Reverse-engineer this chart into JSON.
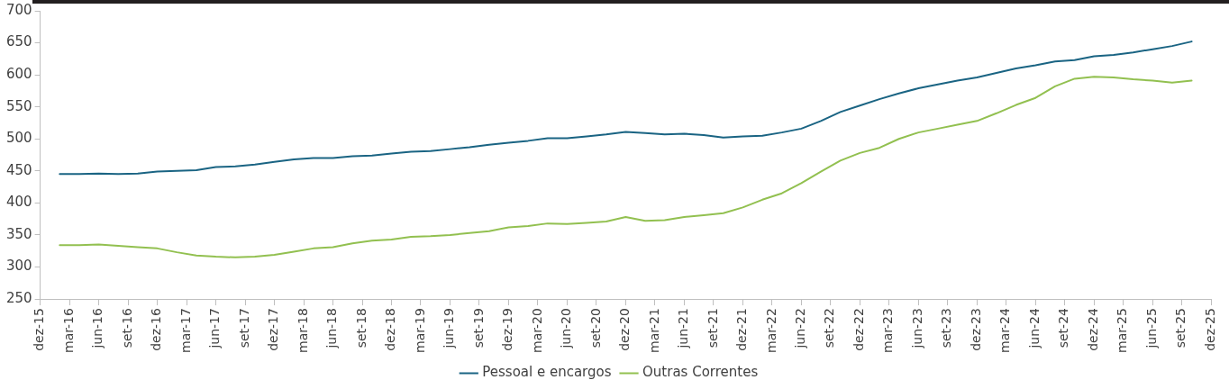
{
  "chart_data": {
    "type": "line",
    "legend": "bottom",
    "grid": false,
    "marker": "none",
    "line_style": "solid",
    "x": [
      "2016-02",
      "2016-04",
      "2016-06",
      "2016-08",
      "2016-10",
      "2016-12",
      "2017-02",
      "2017-04",
      "2017-06",
      "2017-08",
      "2017-10",
      "2017-12",
      "2018-02",
      "2018-04",
      "2018-06",
      "2018-08",
      "2018-10",
      "2018-12",
      "2019-02",
      "2019-04",
      "2019-06",
      "2019-08",
      "2019-10",
      "2019-12",
      "2020-02",
      "2020-04",
      "2020-06",
      "2020-08",
      "2020-10",
      "2020-12",
      "2021-02",
      "2021-04",
      "2021-06",
      "2021-08",
      "2021-10",
      "2021-12",
      "2022-02",
      "2022-04",
      "2022-06",
      "2022-08",
      "2022-10",
      "2022-12",
      "2023-02",
      "2023-04",
      "2023-06",
      "2023-08",
      "2023-10",
      "2023-12",
      "2024-02",
      "2024-04",
      "2024-06",
      "2024-08",
      "2024-10",
      "2024-12",
      "2025-02",
      "2025-04",
      "2025-06",
      "2025-08",
      "2025-10"
    ],
    "series": [
      {
        "name": "Pessoal e encargos",
        "color": "#1a6483",
        "values": [
          445,
          445,
          446,
          445,
          446,
          449,
          450,
          451,
          456,
          457,
          460,
          464,
          468,
          470,
          470,
          473,
          474,
          477,
          480,
          481,
          484,
          487,
          491,
          494,
          497,
          501,
          501,
          504,
          507,
          511,
          509,
          507,
          508,
          506,
          502,
          504,
          505,
          510,
          516,
          528,
          542,
          552,
          562,
          571,
          579,
          585,
          591,
          596,
          603,
          610,
          615,
          621,
          623,
          629,
          631,
          635,
          640,
          645,
          652
        ]
      },
      {
        "name": "Outras Correntes",
        "color": "#92c050",
        "values": [
          334,
          334,
          335,
          333,
          331,
          329,
          323,
          318,
          316,
          315,
          316,
          319,
          324,
          329,
          331,
          337,
          341,
          343,
          347,
          348,
          350,
          353,
          356,
          362,
          364,
          368,
          367,
          369,
          371,
          378,
          372,
          373,
          378,
          381,
          384,
          393,
          405,
          415,
          431,
          449,
          466,
          478,
          486,
          500,
          510,
          516,
          522,
          528,
          540,
          553,
          564,
          582,
          594,
          597,
          596,
          593,
          591,
          588,
          591
        ]
      }
    ],
    "ylim": [
      250,
      700
    ],
    "yticks": [
      250,
      300,
      350,
      400,
      450,
      500,
      550,
      600,
      650,
      700
    ],
    "xlim": [
      "2015-12",
      "2025-12"
    ],
    "xticks": [
      {
        "value": "2015-12",
        "label": "dez-15"
      },
      {
        "value": "2016-03",
        "label": "mar-16"
      },
      {
        "value": "2016-06",
        "label": "jun-16"
      },
      {
        "value": "2016-09",
        "label": "set-16"
      },
      {
        "value": "2016-12",
        "label": "dez-16"
      },
      {
        "value": "2017-03",
        "label": "mar-17"
      },
      {
        "value": "2017-06",
        "label": "jun-17"
      },
      {
        "value": "2017-09",
        "label": "set-17"
      },
      {
        "value": "2017-12",
        "label": "dez-17"
      },
      {
        "value": "2018-03",
        "label": "mar-18"
      },
      {
        "value": "2018-06",
        "label": "jun-18"
      },
      {
        "value": "2018-09",
        "label": "set-18"
      },
      {
        "value": "2018-12",
        "label": "dez-18"
      },
      {
        "value": "2019-03",
        "label": "mar-19"
      },
      {
        "value": "2019-06",
        "label": "jun-19"
      },
      {
        "value": "2019-09",
        "label": "set-19"
      },
      {
        "value": "2019-12",
        "label": "dez-19"
      },
      {
        "value": "2020-03",
        "label": "mar-20"
      },
      {
        "value": "2020-06",
        "label": "jun-20"
      },
      {
        "value": "2020-09",
        "label": "set-20"
      },
      {
        "value": "2020-12",
        "label": "dez-20"
      },
      {
        "value": "2021-03",
        "label": "mar-21"
      },
      {
        "value": "2021-06",
        "label": "jun-21"
      },
      {
        "value": "2021-09",
        "label": "set-21"
      },
      {
        "value": "2021-12",
        "label": "dez-21"
      },
      {
        "value": "2022-03",
        "label": "mar-22"
      },
      {
        "value": "2022-06",
        "label": "jun-22"
      },
      {
        "value": "2022-09",
        "label": "set-22"
      },
      {
        "value": "2022-12",
        "label": "dez-22"
      },
      {
        "value": "2023-03",
        "label": "mar-23"
      },
      {
        "value": "2023-06",
        "label": "jun-23"
      },
      {
        "value": "2023-09",
        "label": "set-23"
      },
      {
        "value": "2023-12",
        "label": "dez-23"
      },
      {
        "value": "2024-03",
        "label": "mar-24"
      },
      {
        "value": "2024-06",
        "label": "jun-24"
      },
      {
        "value": "2024-09",
        "label": "set-24"
      },
      {
        "value": "2024-12",
        "label": "dez-24"
      },
      {
        "value": "2025-03",
        "label": "mar-25"
      },
      {
        "value": "2025-06",
        "label": "jun-25"
      },
      {
        "value": "2025-09",
        "label": "set-25"
      },
      {
        "value": "2025-12",
        "label": "dez-25"
      }
    ]
  }
}
